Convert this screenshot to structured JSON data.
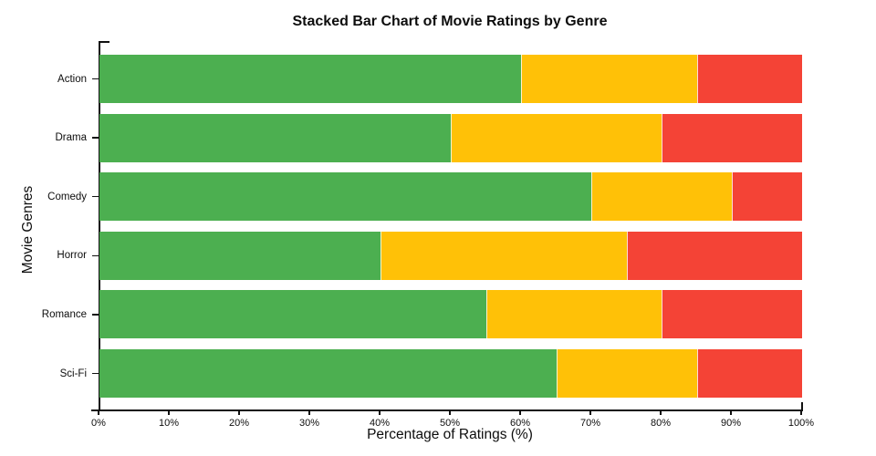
{
  "title": "Stacked Bar Chart of Movie Ratings by Genre",
  "colors": {
    "green": "#4caf50",
    "yellow": "#ffc107",
    "red": "#f44336",
    "axis": "#111111",
    "text": "#0d0d0d",
    "background": "#ffffff"
  },
  "chart_data": {
    "type": "bar",
    "orientation": "horizontal",
    "stacked": true,
    "title": "Stacked Bar Chart of Movie Ratings by Genre",
    "xlabel": "Percentage of Ratings (%)",
    "ylabel": "Movie Genres",
    "categories": [
      "Action",
      "Drama",
      "Comedy",
      "Horror",
      "Romance",
      "Sci-Fi"
    ],
    "series": [
      {
        "name": "green",
        "color": "#4caf50",
        "values": [
          60,
          50,
          70,
          40,
          55,
          65
        ]
      },
      {
        "name": "yellow",
        "color": "#ffc107",
        "values": [
          25,
          30,
          20,
          35,
          25,
          20
        ]
      },
      {
        "name": "red",
        "color": "#f44336",
        "values": [
          15,
          20,
          10,
          25,
          20,
          15
        ]
      }
    ],
    "xlim": [
      0,
      100
    ],
    "x_tick_values": [
      0,
      10,
      20,
      30,
      40,
      50,
      60,
      70,
      80,
      90,
      100
    ],
    "x_tick_labels": [
      "0%",
      "10%",
      "20%",
      "30%",
      "40%",
      "50%",
      "60%",
      "70%",
      "80%",
      "90%",
      "100%"
    ],
    "grid": false,
    "legend": false
  }
}
